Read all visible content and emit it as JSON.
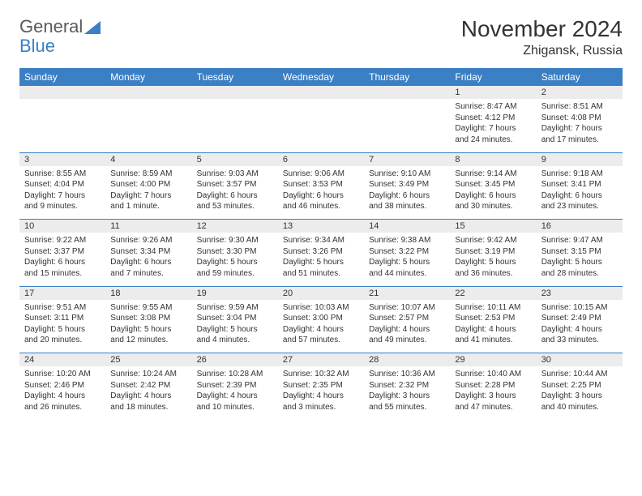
{
  "logo": {
    "text1": "General",
    "text2": "Blue"
  },
  "title": "November 2024",
  "location": "Zhigansk, Russia",
  "colors": {
    "header_bg": "#3b7fc4",
    "header_text": "#ffffff",
    "daynum_bg": "#ececec",
    "border": "#3b7fc4",
    "text": "#333333",
    "logo_gray": "#5a5a5a",
    "logo_blue": "#3b7fc4"
  },
  "weekdays": [
    "Sunday",
    "Monday",
    "Tuesday",
    "Wednesday",
    "Thursday",
    "Friday",
    "Saturday"
  ],
  "weeks": [
    {
      "nums": [
        "",
        "",
        "",
        "",
        "",
        "1",
        "2"
      ],
      "cells": [
        null,
        null,
        null,
        null,
        null,
        {
          "sunrise": "8:47 AM",
          "sunset": "4:12 PM",
          "daylight": "7 hours and 24 minutes."
        },
        {
          "sunrise": "8:51 AM",
          "sunset": "4:08 PM",
          "daylight": "7 hours and 17 minutes."
        }
      ]
    },
    {
      "nums": [
        "3",
        "4",
        "5",
        "6",
        "7",
        "8",
        "9"
      ],
      "cells": [
        {
          "sunrise": "8:55 AM",
          "sunset": "4:04 PM",
          "daylight": "7 hours and 9 minutes."
        },
        {
          "sunrise": "8:59 AM",
          "sunset": "4:00 PM",
          "daylight": "7 hours and 1 minute."
        },
        {
          "sunrise": "9:03 AM",
          "sunset": "3:57 PM",
          "daylight": "6 hours and 53 minutes."
        },
        {
          "sunrise": "9:06 AM",
          "sunset": "3:53 PM",
          "daylight": "6 hours and 46 minutes."
        },
        {
          "sunrise": "9:10 AM",
          "sunset": "3:49 PM",
          "daylight": "6 hours and 38 minutes."
        },
        {
          "sunrise": "9:14 AM",
          "sunset": "3:45 PM",
          "daylight": "6 hours and 30 minutes."
        },
        {
          "sunrise": "9:18 AM",
          "sunset": "3:41 PM",
          "daylight": "6 hours and 23 minutes."
        }
      ]
    },
    {
      "nums": [
        "10",
        "11",
        "12",
        "13",
        "14",
        "15",
        "16"
      ],
      "cells": [
        {
          "sunrise": "9:22 AM",
          "sunset": "3:37 PM",
          "daylight": "6 hours and 15 minutes."
        },
        {
          "sunrise": "9:26 AM",
          "sunset": "3:34 PM",
          "daylight": "6 hours and 7 minutes."
        },
        {
          "sunrise": "9:30 AM",
          "sunset": "3:30 PM",
          "daylight": "5 hours and 59 minutes."
        },
        {
          "sunrise": "9:34 AM",
          "sunset": "3:26 PM",
          "daylight": "5 hours and 51 minutes."
        },
        {
          "sunrise": "9:38 AM",
          "sunset": "3:22 PM",
          "daylight": "5 hours and 44 minutes."
        },
        {
          "sunrise": "9:42 AM",
          "sunset": "3:19 PM",
          "daylight": "5 hours and 36 minutes."
        },
        {
          "sunrise": "9:47 AM",
          "sunset": "3:15 PM",
          "daylight": "5 hours and 28 minutes."
        }
      ]
    },
    {
      "nums": [
        "17",
        "18",
        "19",
        "20",
        "21",
        "22",
        "23"
      ],
      "cells": [
        {
          "sunrise": "9:51 AM",
          "sunset": "3:11 PM",
          "daylight": "5 hours and 20 minutes."
        },
        {
          "sunrise": "9:55 AM",
          "sunset": "3:08 PM",
          "daylight": "5 hours and 12 minutes."
        },
        {
          "sunrise": "9:59 AM",
          "sunset": "3:04 PM",
          "daylight": "5 hours and 4 minutes."
        },
        {
          "sunrise": "10:03 AM",
          "sunset": "3:00 PM",
          "daylight": "4 hours and 57 minutes."
        },
        {
          "sunrise": "10:07 AM",
          "sunset": "2:57 PM",
          "daylight": "4 hours and 49 minutes."
        },
        {
          "sunrise": "10:11 AM",
          "sunset": "2:53 PM",
          "daylight": "4 hours and 41 minutes."
        },
        {
          "sunrise": "10:15 AM",
          "sunset": "2:49 PM",
          "daylight": "4 hours and 33 minutes."
        }
      ]
    },
    {
      "nums": [
        "24",
        "25",
        "26",
        "27",
        "28",
        "29",
        "30"
      ],
      "cells": [
        {
          "sunrise": "10:20 AM",
          "sunset": "2:46 PM",
          "daylight": "4 hours and 26 minutes."
        },
        {
          "sunrise": "10:24 AM",
          "sunset": "2:42 PM",
          "daylight": "4 hours and 18 minutes."
        },
        {
          "sunrise": "10:28 AM",
          "sunset": "2:39 PM",
          "daylight": "4 hours and 10 minutes."
        },
        {
          "sunrise": "10:32 AM",
          "sunset": "2:35 PM",
          "daylight": "4 hours and 3 minutes."
        },
        {
          "sunrise": "10:36 AM",
          "sunset": "2:32 PM",
          "daylight": "3 hours and 55 minutes."
        },
        {
          "sunrise": "10:40 AM",
          "sunset": "2:28 PM",
          "daylight": "3 hours and 47 minutes."
        },
        {
          "sunrise": "10:44 AM",
          "sunset": "2:25 PM",
          "daylight": "3 hours and 40 minutes."
        }
      ]
    }
  ],
  "labels": {
    "sunrise": "Sunrise:",
    "sunset": "Sunset:",
    "daylight": "Daylight:"
  }
}
